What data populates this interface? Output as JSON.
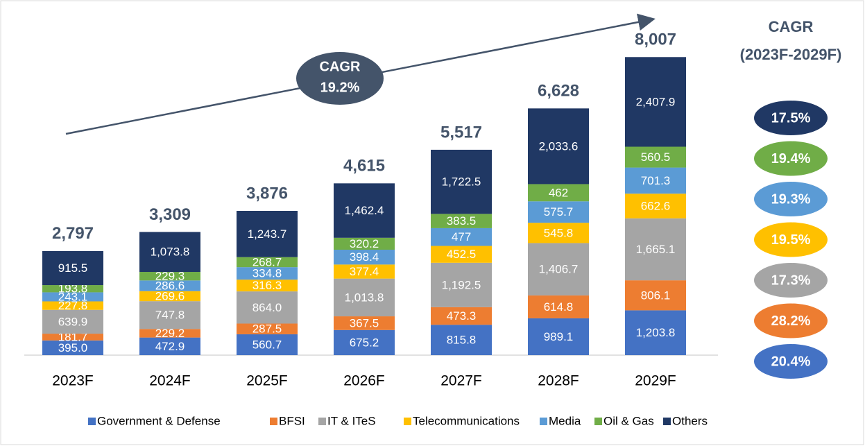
{
  "chart_data": {
    "type": "stacked_bar",
    "categories": [
      "2023F",
      "2024F",
      "2025F",
      "2026F",
      "2027F",
      "2028F",
      "2029F"
    ],
    "series": [
      {
        "name": "Government & Defense",
        "color": "#4472c4",
        "values": [
          395.0,
          472.9,
          560.7,
          675.2,
          815.8,
          989.1,
          1203.8
        ],
        "value_labels": [
          "395.0",
          "472.9",
          "560.7",
          "675.2",
          "815.8",
          "989.1",
          "1,203.8"
        ],
        "cagr": {
          "value": 20.4,
          "label": "20.4%"
        }
      },
      {
        "name": "BFSI",
        "color": "#ed7d31",
        "values": [
          181.7,
          229.2,
          287.5,
          367.5,
          473.3,
          614.8,
          806.1
        ],
        "value_labels": [
          "181.7",
          "229.2",
          "287.5",
          "367.5",
          "473.3",
          "614.8",
          "806.1"
        ],
        "cagr": {
          "value": 28.2,
          "label": "28.2%"
        }
      },
      {
        "name": "IT & ITeS",
        "color": "#a5a5a5",
        "values": [
          639.9,
          747.8,
          864.0,
          1013.8,
          1192.5,
          1406.7,
          1665.1
        ],
        "value_labels": [
          "639.9",
          "747.8",
          "864.0",
          "1,013.8",
          "1,192.5",
          "1,406.7",
          "1,665.1"
        ],
        "cagr": {
          "value": 17.3,
          "label": "17.3%"
        }
      },
      {
        "name": "Telecommunications",
        "color": "#ffc000",
        "values": [
          227.8,
          269.6,
          316.3,
          377.4,
          452.5,
          545.8,
          662.6
        ],
        "value_labels": [
          "227.8",
          "269.6",
          "316.3",
          "377.4",
          "452.5",
          "545.8",
          "662.6"
        ],
        "cagr": {
          "value": 19.5,
          "label": "19.5%"
        }
      },
      {
        "name": "Media",
        "color": "#5b9bd5",
        "values": [
          243.1,
          286.6,
          334.8,
          398.4,
          477,
          575.7,
          701.3
        ],
        "value_labels": [
          "243.1",
          "286.6",
          "334.8",
          "398.4",
          "477",
          "575.7",
          "701.3"
        ],
        "cagr": {
          "value": 19.3,
          "label": "19.3%"
        }
      },
      {
        "name": "Oil & Gas",
        "color": "#70ad47",
        "values": [
          193.8,
          229.3,
          268.7,
          320.2,
          383.5,
          462,
          560.5
        ],
        "value_labels": [
          "193.8",
          "229.3",
          "268.7",
          "320.2",
          "383.5",
          "462",
          "560.5"
        ],
        "cagr": {
          "value": 19.4,
          "label": "19.4%"
        }
      },
      {
        "name": "Others",
        "color": "#203864",
        "values": [
          915.5,
          1073.8,
          1243.7,
          1462.4,
          1722.5,
          2033.6,
          2407.9
        ],
        "value_labels": [
          "915.5",
          "1,073.8",
          "1,243.7",
          "1,462.4",
          "1,722.5",
          "2,033.6",
          "2,407.9"
        ],
        "cagr": {
          "value": 17.5,
          "label": "17.5%"
        }
      }
    ],
    "totals": [
      2797,
      3309,
      3876,
      4615,
      5517,
      6628,
      8007
    ],
    "total_labels": [
      "2,797",
      "3,309",
      "3,876",
      "4,615",
      "5,517",
      "6,628",
      "8,007"
    ],
    "ylim": [
      0,
      9000
    ],
    "overall_cagr": {
      "title": "CAGR",
      "value": 19.2,
      "label": "19.2%"
    },
    "cagr_header": [
      "CAGR",
      "(2023F-2029F)"
    ],
    "legend": "bottom"
  }
}
